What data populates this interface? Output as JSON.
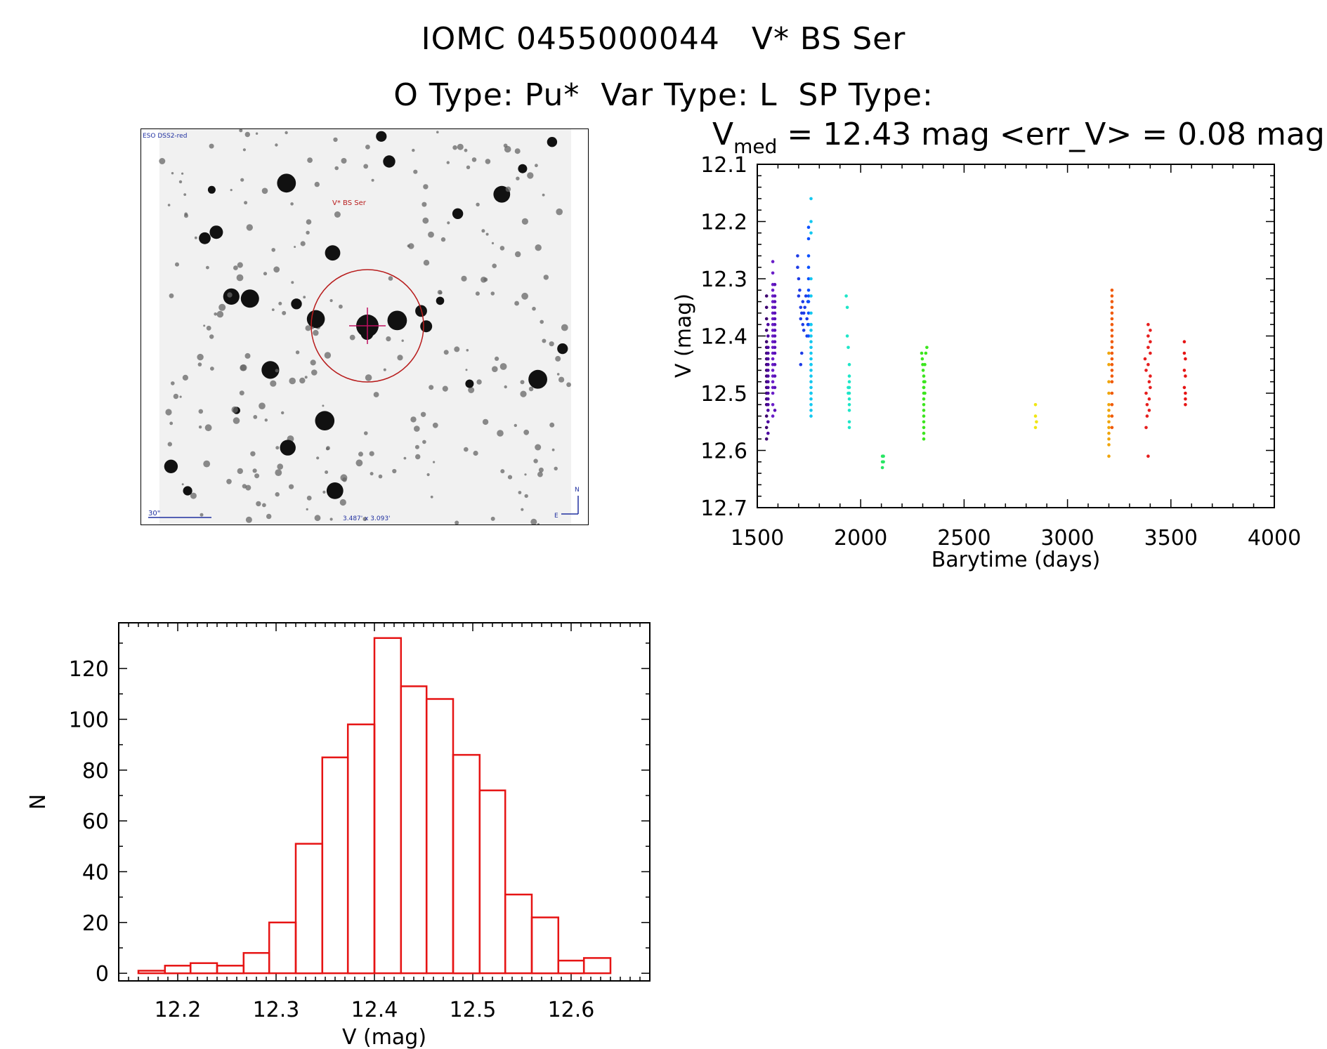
{
  "header": {
    "title_line1": "IOMC 0455000044   V* BS Ser",
    "title_line2": "O Type: Pu*  Var Type: L  SP Type:"
  },
  "finder_chart": {
    "survey_label": "ESO DSS2-red",
    "target_label": "V* BS Ser",
    "scale_label": "30\"",
    "size_label": "3.487' x 3.093'",
    "north_label": "N",
    "east_label": "E"
  },
  "lightcurve_title": {
    "v": "V",
    "sub": "med",
    "rest": " = 12.43 mag <err_V> = 0.08 mag"
  },
  "chart_data": [
    {
      "type": "scatter",
      "xlabel": "Barytime (days)",
      "ylabel": "V (mag)",
      "xlim": [
        1500,
        4000
      ],
      "ylim": [
        12.7,
        12.1
      ],
      "y_inverted": true,
      "xticks": [
        1500,
        2000,
        2500,
        3000,
        3500,
        4000
      ],
      "yticks": [
        12.1,
        12.2,
        12.3,
        12.4,
        12.5,
        12.6,
        12.7
      ],
      "series": [
        {
          "color": "#3d0070",
          "x": [
            1545,
            1545,
            1545,
            1545,
            1545,
            1545,
            1545,
            1545,
            1545,
            1545,
            1545,
            1545,
            1545,
            1545,
            1545,
            1545,
            1545,
            1545,
            1545
          ],
          "y": [
            12.33,
            12.35,
            12.37,
            12.39,
            12.41,
            12.42,
            12.43,
            12.44,
            12.45,
            12.46,
            12.47,
            12.48,
            12.49,
            12.5,
            12.51,
            12.52,
            12.54,
            12.56,
            12.58
          ]
        },
        {
          "color": "#4b00a0",
          "x": [
            1552,
            1552,
            1552,
            1552,
            1552,
            1552,
            1552,
            1552,
            1552,
            1552,
            1552,
            1552,
            1552,
            1552,
            1552,
            1552
          ],
          "y": [
            12.38,
            12.4,
            12.42,
            12.43,
            12.44,
            12.45,
            12.46,
            12.47,
            12.48,
            12.49,
            12.5,
            12.51,
            12.52,
            12.53,
            12.55,
            12.57
          ]
        },
        {
          "color": "#6a1ec8",
          "x": [
            1575,
            1575,
            1575,
            1575,
            1575,
            1575,
            1575,
            1575,
            1575,
            1575,
            1575,
            1575,
            1575,
            1575,
            1575,
            1575,
            1575,
            1575,
            1575,
            1575,
            1575,
            1575,
            1575,
            1575
          ],
          "y": [
            12.27,
            12.29,
            12.31,
            12.32,
            12.33,
            12.34,
            12.35,
            12.36,
            12.37,
            12.38,
            12.39,
            12.4,
            12.41,
            12.42,
            12.43,
            12.44,
            12.45,
            12.46,
            12.47,
            12.48,
            12.49,
            12.5,
            12.52,
            12.54
          ]
        },
        {
          "color": "#5a10b8",
          "x": [
            1585,
            1585,
            1585,
            1585,
            1585,
            1585,
            1585,
            1585,
            1585,
            1585,
            1585,
            1585,
            1585,
            1585,
            1585,
            1585
          ],
          "y": [
            12.31,
            12.33,
            12.34,
            12.35,
            12.36,
            12.37,
            12.38,
            12.39,
            12.4,
            12.41,
            12.42,
            12.43,
            12.45,
            12.47,
            12.49,
            12.53
          ]
        },
        {
          "color": "#1e3ce6",
          "x": [
            1695,
            1695,
            1700,
            1700,
            1705,
            1710,
            1710,
            1710,
            1715,
            1715,
            1720,
            1720,
            1725,
            1725,
            1730,
            1735,
            1740,
            1740,
            1745,
            1745
          ],
          "y": [
            12.26,
            12.28,
            12.3,
            12.33,
            12.32,
            12.35,
            12.37,
            12.45,
            12.36,
            12.43,
            12.34,
            12.38,
            12.36,
            12.39,
            12.35,
            12.33,
            12.37,
            12.4,
            12.34,
            12.38
          ]
        },
        {
          "color": "#0a50ff",
          "x": [
            1748,
            1748,
            1748,
            1748,
            1748,
            1748,
            1748,
            1748,
            1748,
            1748,
            1748
          ],
          "y": [
            12.21,
            12.23,
            12.26,
            12.28,
            12.3,
            12.32,
            12.33,
            12.34,
            12.36,
            12.38,
            12.4
          ]
        },
        {
          "color": "#14c8f0",
          "x": [
            1760,
            1760,
            1760,
            1760,
            1760,
            1760,
            1760,
            1760,
            1760,
            1760,
            1760,
            1760,
            1760,
            1760,
            1760,
            1760,
            1760,
            1760,
            1760,
            1760,
            1760,
            1760,
            1760,
            1760,
            1760,
            1760
          ],
          "y": [
            12.16,
            12.2,
            12.22,
            12.3,
            12.33,
            12.36,
            12.38,
            12.39,
            12.4,
            12.41,
            12.42,
            12.43,
            12.44,
            12.45,
            12.46,
            12.47,
            12.48,
            12.49,
            12.5,
            12.51,
            12.52,
            12.53,
            12.54,
            12.38,
            12.45,
            12.5
          ]
        },
        {
          "color": "#1ee6c8",
          "x": [
            1930,
            1935,
            1935,
            1940,
            1940,
            1940,
            1945,
            1945,
            1945,
            1945,
            1945,
            1945,
            1945,
            1945,
            1945,
            1945
          ],
          "y": [
            12.33,
            12.35,
            12.4,
            12.42,
            12.49,
            12.5,
            12.45,
            12.47,
            12.48,
            12.49,
            12.5,
            12.51,
            12.52,
            12.53,
            12.55,
            12.56
          ]
        },
        {
          "color": "#28e664",
          "x": [
            2105,
            2105,
            2105,
            2110,
            2110
          ],
          "y": [
            12.61,
            12.62,
            12.63,
            12.61,
            12.62
          ]
        },
        {
          "color": "#3ce61e",
          "x": [
            2295,
            2298,
            2300,
            2302,
            2305,
            2305,
            2305,
            2305,
            2305,
            2305,
            2305,
            2305,
            2305,
            2305,
            2305,
            2305,
            2305,
            2310,
            2310,
            2310,
            2315,
            2320
          ],
          "y": [
            12.43,
            12.44,
            12.45,
            12.46,
            12.47,
            12.48,
            12.49,
            12.5,
            12.51,
            12.52,
            12.53,
            12.54,
            12.55,
            12.56,
            12.57,
            12.58,
            12.49,
            12.48,
            12.5,
            12.45,
            12.43,
            12.42
          ]
        },
        {
          "color": "#f0e614",
          "x": [
            2845,
            2845,
            2845,
            2850
          ],
          "y": [
            12.52,
            12.54,
            12.56,
            12.55
          ]
        },
        {
          "color": "#f0a50a",
          "x": [
            3200,
            3200,
            3200,
            3200,
            3200,
            3200,
            3200,
            3200,
            3200,
            3200,
            3200,
            3200,
            3200
          ],
          "y": [
            12.43,
            12.45,
            12.48,
            12.5,
            12.52,
            12.53,
            12.54,
            12.55,
            12.56,
            12.57,
            12.58,
            12.59,
            12.61
          ]
        },
        {
          "color": "#f05a0a",
          "x": [
            3215,
            3215,
            3215,
            3215,
            3215,
            3215,
            3215,
            3215,
            3215,
            3215,
            3215,
            3215,
            3215,
            3215,
            3215,
            3215,
            3215,
            3215,
            3215,
            3215,
            3215
          ],
          "y": [
            12.32,
            12.33,
            12.34,
            12.35,
            12.36,
            12.37,
            12.38,
            12.39,
            12.4,
            12.41,
            12.42,
            12.43,
            12.44,
            12.45,
            12.46,
            12.47,
            12.48,
            12.5,
            12.52,
            12.54,
            12.56
          ]
        },
        {
          "color": "#e61e1e",
          "x": [
            3375,
            3380,
            3380,
            3385,
            3385,
            3390,
            3390,
            3390,
            3390,
            3395,
            3395,
            3395,
            3400,
            3400,
            3400,
            3400,
            3400,
            3380,
            3390
          ],
          "y": [
            12.44,
            12.46,
            12.5,
            12.52,
            12.54,
            12.38,
            12.4,
            12.42,
            12.45,
            12.48,
            12.51,
            12.53,
            12.39,
            12.41,
            12.43,
            12.47,
            12.49,
            12.56,
            12.61
          ]
        },
        {
          "color": "#e61414",
          "x": [
            3565,
            3565,
            3565,
            3565,
            3570,
            3570,
            3570,
            3570,
            3570
          ],
          "y": [
            12.41,
            12.43,
            12.46,
            12.49,
            12.44,
            12.47,
            12.5,
            12.51,
            12.52
          ]
        }
      ]
    },
    {
      "type": "bar",
      "histogram": true,
      "xlabel": "V (mag)",
      "ylabel": "N",
      "xlim": [
        12.14,
        12.68
      ],
      "ylim": [
        -3,
        138
      ],
      "xticks": [
        12.2,
        12.3,
        12.4,
        12.5,
        12.6
      ],
      "yticks": [
        0,
        20,
        40,
        60,
        80,
        100,
        120
      ],
      "bin_edges": [
        12.16,
        12.187,
        12.213,
        12.24,
        12.267,
        12.293,
        12.32,
        12.347,
        12.373,
        12.4,
        12.427,
        12.453,
        12.48,
        12.507,
        12.533,
        12.56,
        12.587,
        12.613,
        12.64
      ],
      "values": [
        1,
        3,
        4,
        3,
        8,
        20,
        51,
        85,
        98,
        132,
        113,
        108,
        86,
        72,
        31,
        22,
        5,
        6
      ],
      "color": "#e61414"
    }
  ]
}
